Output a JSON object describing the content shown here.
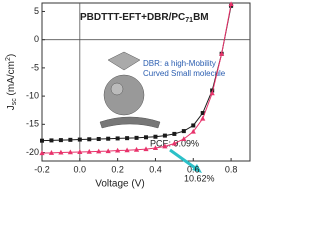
{
  "chart_data": {
    "type": "line",
    "title": {
      "main": "PBDTTT-EFT+DBR/PC",
      "sub": "71",
      "end": "BM"
    },
    "xlabel": "Voltage (V)",
    "ylabel": {
      "main": "J",
      "sub": "sc",
      "mid": " (mA/cm",
      "sup": "2",
      "end": ")"
    },
    "annotations": {
      "note_line1": "DBR: a high-Mobility",
      "note_line2": "Curved Small molecule",
      "pce_black": "PCE: 9.09%",
      "pce_red": "10.62%"
    },
    "x": [
      -0.2,
      -0.15,
      -0.1,
      -0.05,
      0,
      0.05,
      0.1,
      0.15,
      0.2,
      0.25,
      0.3,
      0.35,
      0.4,
      0.45,
      0.5,
      0.55,
      0.6,
      0.65,
      0.7,
      0.75,
      0.8
    ],
    "series": [
      {
        "color": "#1a1a1a",
        "marker": "square",
        "values": [
          -17.9,
          -17.85,
          -17.8,
          -17.75,
          -17.7,
          -17.65,
          -17.6,
          -17.55,
          -17.5,
          -17.45,
          -17.4,
          -17.3,
          -17.2,
          -17.0,
          -16.7,
          -16.2,
          -15.2,
          -13.0,
          -9.0,
          -2.5,
          6.0
        ]
      },
      {
        "color": "#e8336b",
        "marker": "triangle",
        "values": [
          -20.1,
          -20.05,
          -20.0,
          -19.95,
          -19.9,
          -19.85,
          -19.8,
          -19.75,
          -19.65,
          -19.6,
          -19.5,
          -19.4,
          -19.2,
          -18.9,
          -18.4,
          -17.6,
          -16.3,
          -14.0,
          -9.5,
          -2.5,
          6.3
        ]
      }
    ],
    "xlim": [
      -0.2,
      0.9
    ],
    "ylim": [
      -21.5,
      6.5
    ],
    "xticks": [
      {
        "value": -0.2,
        "label": "-0.2"
      },
      {
        "value": 0,
        "label": "0.0"
      },
      {
        "value": 0.2,
        "label": "0.2"
      },
      {
        "value": 0.4,
        "label": "0.4"
      },
      {
        "value": 0.6,
        "label": "0.6"
      },
      {
        "value": 0.8,
        "label": "0.8"
      }
    ],
    "yticks": [
      -20,
      -15,
      -10,
      -5,
      0,
      5
    ]
  }
}
